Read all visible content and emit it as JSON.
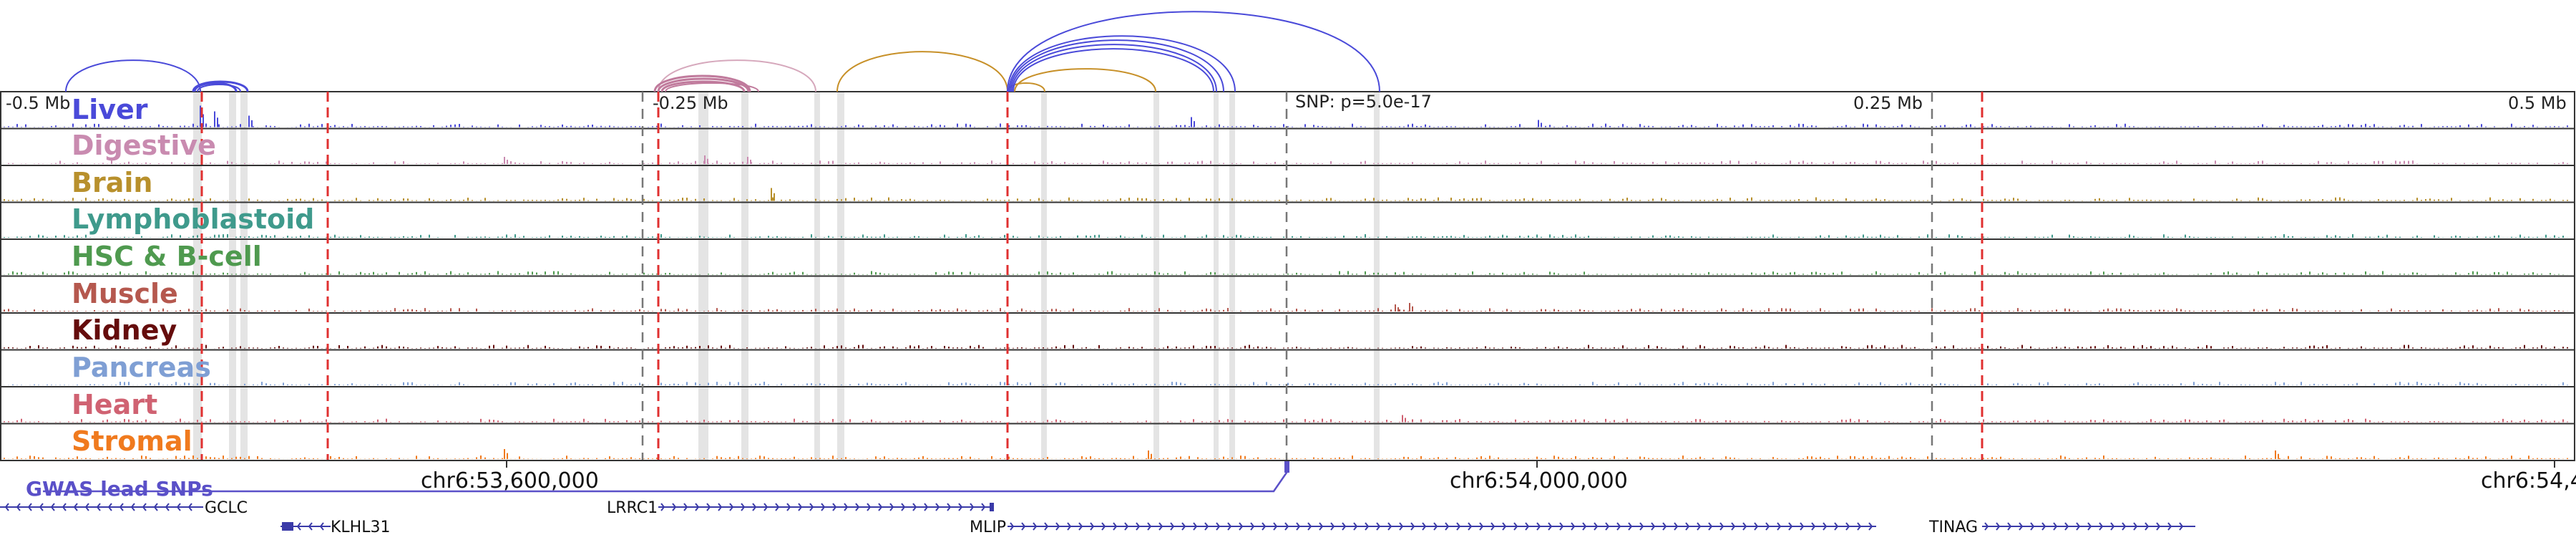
{
  "tracks": [
    {
      "name": "Liver",
      "color": "#4a4ad9"
    },
    {
      "name": "Digestive",
      "color": "#c98bb0"
    },
    {
      "name": "Brain",
      "color": "#b8902c"
    },
    {
      "name": "Lymphoblastoid",
      "color": "#3f9a8c"
    },
    {
      "name": "HSC & B-cell",
      "color": "#4f9a4f"
    },
    {
      "name": "Muscle",
      "color": "#b5584e"
    },
    {
      "name": "Kidney",
      "color": "#650c0c"
    },
    {
      "name": "Pancreas",
      "color": "#7f9fd4"
    },
    {
      "name": "Heart",
      "color": "#d06272"
    },
    {
      "name": "Stromal",
      "color": "#f07a1e"
    }
  ],
  "ruler": {
    "left": "-0.5 Mb",
    "mid_left": "-0.25 Mb",
    "snp": "SNP: p=5.0e-17",
    "mid_right": "0.25 Mb",
    "right": "0.5 Mb"
  },
  "coordinates": [
    "chr6:53,600,000",
    "chr6:54,000,000",
    "chr6:54,4"
  ],
  "gwas_label": "GWAS lead SNPs",
  "genes": [
    {
      "name": "GCLC",
      "strand": "-"
    },
    {
      "name": "KLHL31",
      "strand": "-"
    },
    {
      "name": "LRRC1",
      "strand": "+"
    },
    {
      "name": "MLIP",
      "strand": "+"
    },
    {
      "name": "TINAG",
      "strand": "+"
    }
  ],
  "colors": {
    "axis": "#333333",
    "red_marker": "#e03030",
    "highlight": "#d9d9d9",
    "gwas": "#5a50c8"
  }
}
